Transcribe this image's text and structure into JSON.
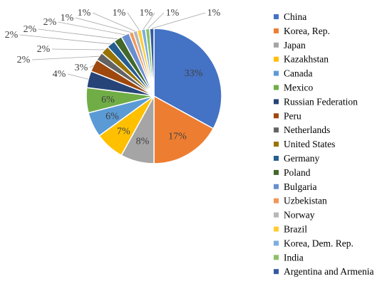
{
  "chart_data": {
    "type": "pie",
    "title": "",
    "legend_position": "right",
    "slices": [
      {
        "label": "China",
        "value": 33,
        "value_label": "33%",
        "color": "#4472C4"
      },
      {
        "label": "Korea, Rep.",
        "value": 17,
        "value_label": "17%",
        "color": "#ED7D31"
      },
      {
        "label": "Japan",
        "value": 8,
        "value_label": "8%",
        "color": "#A5A5A5"
      },
      {
        "label": "Kazakhstan",
        "value": 7,
        "value_label": "7%",
        "color": "#FFC000"
      },
      {
        "label": "Canada",
        "value": 6,
        "value_label": "6%",
        "color": "#5B9BD5"
      },
      {
        "label": "Mexico",
        "value": 6,
        "value_label": "6%",
        "color": "#70AD47"
      },
      {
        "label": "Russian Federation",
        "value": 4,
        "value_label": "4%",
        "color": "#264478"
      },
      {
        "label": "Peru",
        "value": 3,
        "value_label": "3%",
        "color": "#9E480E"
      },
      {
        "label": "Netherlands",
        "value": 2,
        "value_label": "2%",
        "color": "#636363"
      },
      {
        "label": "United States",
        "value": 2,
        "value_label": "2%",
        "color": "#997300"
      },
      {
        "label": "Germany",
        "value": 2,
        "value_label": "2%",
        "color": "#255E91"
      },
      {
        "label": "Poland",
        "value": 2,
        "value_label": "2%",
        "color": "#43682B"
      },
      {
        "label": "Bulgaria",
        "value": 2,
        "value_label": "2%",
        "color": "#698ED0"
      },
      {
        "label": "Uzbekistan",
        "value": 1,
        "value_label": "1%",
        "color": "#F1975A"
      },
      {
        "label": "Norway",
        "value": 1,
        "value_label": "1%",
        "color": "#B7B7B7"
      },
      {
        "label": "Brazil",
        "value": 1,
        "value_label": "1%",
        "color": "#FFCD33"
      },
      {
        "label": "Korea, Dem. Rep.",
        "value": 1,
        "value_label": "1%",
        "color": "#7CAFDD"
      },
      {
        "label": "India",
        "value": 1,
        "value_label": "1%",
        "color": "#8CC168"
      },
      {
        "label": "Argentina and Armenia",
        "value": 1,
        "value_label": "1%",
        "color": "#335AA1"
      }
    ]
  }
}
